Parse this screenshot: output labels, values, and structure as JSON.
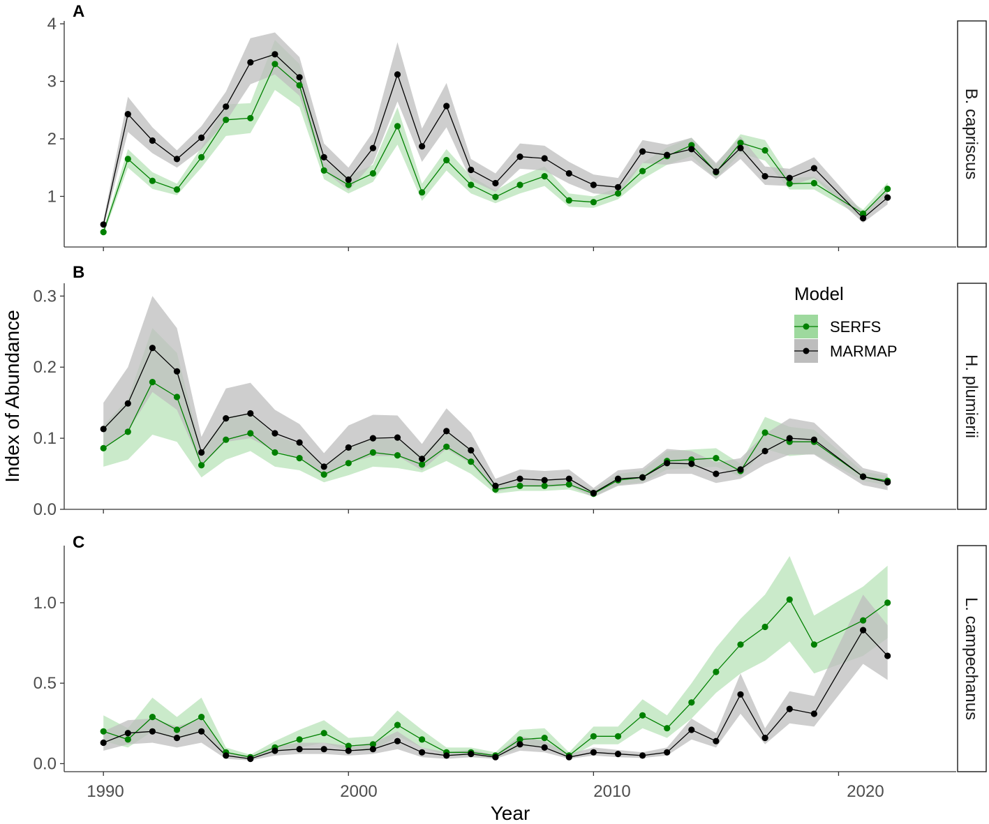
{
  "chart_data": {
    "type": "line",
    "xlabel": "Year",
    "ylabel": "Index of Abundance",
    "xlim": [
      1988.4,
      2024.8
    ],
    "x_ticks": [
      1990,
      2000,
      2010,
      2020
    ],
    "x_tick_labels": [
      "1990",
      "2000",
      "2010",
      "2020"
    ],
    "legend": {
      "title": "Model",
      "position": "inside-top-right of panel B",
      "entries": [
        {
          "name": "SERFS",
          "line_color": "#008000",
          "band_color": "#9ed99e"
        },
        {
          "name": "MARMAP",
          "line_color": "#000000",
          "band_color": "#bdbdbd"
        }
      ]
    },
    "panels": [
      {
        "letter": "A",
        "strip": "B. capriscus",
        "ylim": [
          0.12,
          4.05
        ],
        "y_ticks": [
          1,
          2,
          3,
          4
        ],
        "y_tick_labels": [
          "1",
          "2",
          "3",
          "4"
        ],
        "series": [
          {
            "name": "SERFS",
            "x": [
              1990,
              1991,
              1992,
              1993,
              1994,
              1995,
              1996,
              1997,
              1998,
              1999,
              2000,
              2001,
              2002,
              2003,
              2004,
              2005,
              2006,
              2007,
              2008,
              2009,
              2010,
              2011,
              2012,
              2013,
              2014,
              2015,
              2016,
              2017,
              2018,
              2019,
              2021,
              2022
            ],
            "values": [
              0.38,
              1.65,
              1.27,
              1.12,
              1.68,
              2.33,
              2.36,
              3.3,
              2.93,
              1.45,
              1.2,
              1.4,
              2.22,
              1.07,
              1.63,
              1.2,
              0.99,
              1.2,
              1.35,
              0.93,
              0.9,
              1.05,
              1.44,
              1.7,
              1.89,
              1.42,
              1.93,
              1.8,
              1.22,
              1.23,
              0.7,
              1.13
            ],
            "lower": [
              0.33,
              1.5,
              1.13,
              1.02,
              1.5,
              2.05,
              2.1,
              2.85,
              2.55,
              1.3,
              1.05,
              1.25,
              1.9,
              0.92,
              1.45,
              1.05,
              0.88,
              1.05,
              1.18,
              0.82,
              0.8,
              0.95,
              1.3,
              1.55,
              1.7,
              1.3,
              1.75,
              1.62,
              1.12,
              1.12,
              0.63,
              1.02
            ],
            "upper": [
              0.43,
              1.82,
              1.42,
              1.22,
              1.85,
              2.6,
              2.62,
              3.72,
              3.3,
              1.6,
              1.35,
              1.55,
              2.55,
              1.22,
              1.82,
              1.35,
              1.1,
              1.35,
              1.52,
              1.05,
              1.0,
              1.15,
              1.58,
              1.85,
              2.02,
              1.55,
              2.08,
              1.98,
              1.32,
              1.34,
              0.77,
              1.24
            ]
          },
          {
            "name": "MARMAP",
            "x": [
              1990,
              1991,
              1992,
              1993,
              1994,
              1995,
              1996,
              1997,
              1998,
              1999,
              2000,
              2001,
              2002,
              2003,
              2004,
              2005,
              2006,
              2007,
              2008,
              2009,
              2010,
              2011,
              2012,
              2013,
              2014,
              2015,
              2016,
              2017,
              2018,
              2019,
              2021,
              2022
            ],
            "values": [
              0.51,
              2.43,
              1.97,
              1.65,
              2.02,
              2.56,
              3.33,
              3.47,
              3.07,
              1.68,
              1.29,
              1.84,
              3.12,
              1.87,
              2.57,
              1.46,
              1.23,
              1.69,
              1.66,
              1.4,
              1.2,
              1.16,
              1.78,
              1.72,
              1.82,
              1.43,
              1.84,
              1.35,
              1.32,
              1.49,
              0.62,
              0.98
            ],
            "lower": [
              0.44,
              2.12,
              1.75,
              1.5,
              1.82,
              2.3,
              2.95,
              3.12,
              2.75,
              1.45,
              1.1,
              1.58,
              2.65,
              1.6,
              2.2,
              1.28,
              1.08,
              1.48,
              1.45,
              1.22,
              1.05,
              1.02,
              1.58,
              1.55,
              1.62,
              1.3,
              1.65,
              1.2,
              1.18,
              1.32,
              0.54,
              0.86
            ],
            "upper": [
              0.59,
              2.73,
              2.2,
              1.8,
              2.22,
              2.82,
              3.75,
              3.85,
              3.42,
              1.92,
              1.5,
              2.12,
              3.68,
              2.18,
              2.97,
              1.65,
              1.4,
              1.92,
              1.88,
              1.6,
              1.38,
              1.32,
              1.98,
              1.9,
              2.02,
              1.58,
              2.04,
              1.52,
              1.48,
              1.68,
              0.72,
              1.1
            ]
          }
        ]
      },
      {
        "letter": "B",
        "strip": "H. plumierii",
        "ylim": [
          0.0,
          0.318
        ],
        "y_ticks": [
          0.0,
          0.1,
          0.2,
          0.3
        ],
        "y_tick_labels": [
          "0.0",
          "0.1",
          "0.2",
          "0.3"
        ],
        "series": [
          {
            "name": "SERFS",
            "x": [
              1990,
              1991,
              1992,
              1993,
              1994,
              1995,
              1996,
              1997,
              1998,
              1999,
              2000,
              2001,
              2002,
              2003,
              2004,
              2005,
              2006,
              2007,
              2008,
              2009,
              2010,
              2011,
              2012,
              2013,
              2014,
              2015,
              2016,
              2017,
              2018,
              2019,
              2021,
              2022
            ],
            "values": [
              0.086,
              0.109,
              0.179,
              0.158,
              0.062,
              0.098,
              0.107,
              0.08,
              0.072,
              0.049,
              0.065,
              0.08,
              0.076,
              0.063,
              0.088,
              0.067,
              0.028,
              0.033,
              0.033,
              0.035,
              0.022,
              0.041,
              0.045,
              0.068,
              0.07,
              0.072,
              0.054,
              0.108,
              0.095,
              0.095,
              0.046,
              0.04
            ],
            "lower": [
              0.06,
              0.07,
              0.105,
              0.095,
              0.045,
              0.07,
              0.082,
              0.06,
              0.055,
              0.038,
              0.048,
              0.06,
              0.058,
              0.052,
              0.068,
              0.05,
              0.022,
              0.026,
              0.026,
              0.028,
              0.018,
              0.034,
              0.038,
              0.056,
              0.058,
              0.06,
              0.046,
              0.085,
              0.075,
              0.078,
              0.04,
              0.034
            ],
            "upper": [
              0.118,
              0.155,
              0.255,
              0.22,
              0.082,
              0.13,
              0.135,
              0.104,
              0.092,
              0.062,
              0.086,
              0.1,
              0.098,
              0.076,
              0.11,
              0.085,
              0.035,
              0.04,
              0.041,
              0.043,
              0.027,
              0.05,
              0.054,
              0.082,
              0.084,
              0.086,
              0.064,
              0.13,
              0.116,
              0.112,
              0.053,
              0.047
            ]
          },
          {
            "name": "MARMAP",
            "x": [
              1990,
              1991,
              1992,
              1993,
              1994,
              1995,
              1996,
              1997,
              1998,
              1999,
              2000,
              2001,
              2002,
              2003,
              2004,
              2005,
              2006,
              2007,
              2008,
              2009,
              2010,
              2011,
              2012,
              2013,
              2014,
              2015,
              2016,
              2017,
              2018,
              2019,
              2021,
              2022
            ],
            "values": [
              0.113,
              0.149,
              0.227,
              0.194,
              0.08,
              0.128,
              0.135,
              0.107,
              0.094,
              0.06,
              0.087,
              0.1,
              0.101,
              0.071,
              0.11,
              0.083,
              0.033,
              0.043,
              0.041,
              0.043,
              0.023,
              0.043,
              0.045,
              0.065,
              0.064,
              0.05,
              0.056,
              0.082,
              0.1,
              0.098,
              0.046,
              0.038
            ],
            "lower": [
              0.085,
              0.11,
              0.165,
              0.14,
              0.062,
              0.095,
              0.1,
              0.082,
              0.072,
              0.046,
              0.065,
              0.075,
              0.075,
              0.055,
              0.085,
              0.064,
              0.025,
              0.032,
              0.031,
              0.033,
              0.017,
              0.033,
              0.036,
              0.05,
              0.05,
              0.037,
              0.043,
              0.063,
              0.077,
              0.077,
              0.034,
              0.027
            ],
            "upper": [
              0.15,
              0.2,
              0.3,
              0.255,
              0.102,
              0.17,
              0.178,
              0.14,
              0.12,
              0.079,
              0.118,
              0.133,
              0.132,
              0.092,
              0.142,
              0.108,
              0.043,
              0.056,
              0.054,
              0.056,
              0.03,
              0.055,
              0.058,
              0.085,
              0.082,
              0.066,
              0.072,
              0.106,
              0.128,
              0.122,
              0.058,
              0.05
            ]
          }
        ]
      },
      {
        "letter": "C",
        "strip": "L. campechanus",
        "ylim": [
          -0.05,
          1.355
        ],
        "y_ticks": [
          0.0,
          0.5,
          1.0
        ],
        "y_tick_labels": [
          "0.0",
          "0.5",
          "1.0"
        ],
        "series": [
          {
            "name": "SERFS",
            "x": [
              1990,
              1991,
              1992,
              1993,
              1994,
              1995,
              1996,
              1997,
              1998,
              1999,
              2000,
              2001,
              2002,
              2003,
              2004,
              2005,
              2006,
              2007,
              2008,
              2009,
              2010,
              2011,
              2012,
              2013,
              2014,
              2015,
              2016,
              2017,
              2018,
              2019,
              2021,
              2022
            ],
            "values": [
              0.2,
              0.15,
              0.29,
              0.21,
              0.29,
              0.07,
              0.04,
              0.1,
              0.15,
              0.19,
              0.11,
              0.12,
              0.24,
              0.15,
              0.07,
              0.07,
              0.05,
              0.15,
              0.16,
              0.05,
              0.17,
              0.17,
              0.3,
              0.22,
              0.38,
              0.57,
              0.74,
              0.85,
              1.02,
              0.74,
              0.89,
              1.0
            ],
            "lower": [
              0.14,
              0.1,
              0.2,
              0.15,
              0.2,
              0.05,
              0.03,
              0.07,
              0.1,
              0.13,
              0.08,
              0.08,
              0.17,
              0.1,
              0.05,
              0.05,
              0.035,
              0.1,
              0.11,
              0.035,
              0.12,
              0.12,
              0.22,
              0.16,
              0.28,
              0.44,
              0.56,
              0.64,
              0.76,
              0.56,
              0.67,
              0.78
            ],
            "upper": [
              0.3,
              0.22,
              0.41,
              0.29,
              0.41,
              0.1,
              0.055,
              0.14,
              0.21,
              0.27,
              0.16,
              0.17,
              0.33,
              0.21,
              0.1,
              0.1,
              0.07,
              0.21,
              0.22,
              0.07,
              0.23,
              0.23,
              0.4,
              0.3,
              0.5,
              0.72,
              0.9,
              1.05,
              1.29,
              0.92,
              1.1,
              1.23
            ]
          },
          {
            "name": "MARMAP",
            "x": [
              1990,
              1991,
              1992,
              1993,
              1994,
              1995,
              1996,
              1997,
              1998,
              1999,
              2000,
              2001,
              2002,
              2003,
              2004,
              2005,
              2006,
              2007,
              2008,
              2009,
              2010,
              2011,
              2012,
              2013,
              2014,
              2015,
              2016,
              2017,
              2018,
              2019,
              2021,
              2022
            ],
            "values": [
              0.13,
              0.19,
              0.2,
              0.16,
              0.2,
              0.05,
              0.03,
              0.08,
              0.09,
              0.09,
              0.08,
              0.09,
              0.14,
              0.07,
              0.05,
              0.06,
              0.04,
              0.12,
              0.1,
              0.04,
              0.07,
              0.06,
              0.05,
              0.07,
              0.21,
              0.14,
              0.43,
              0.16,
              0.34,
              0.31,
              0.83,
              0.67
            ],
            "lower": [
              0.08,
              0.12,
              0.13,
              0.1,
              0.13,
              0.03,
              0.02,
              0.05,
              0.06,
              0.06,
              0.05,
              0.06,
              0.09,
              0.04,
              0.03,
              0.04,
              0.03,
              0.08,
              0.07,
              0.03,
              0.05,
              0.04,
              0.035,
              0.05,
              0.15,
              0.1,
              0.31,
              0.12,
              0.25,
              0.23,
              0.62,
              0.52
            ],
            "upper": [
              0.2,
              0.27,
              0.28,
              0.23,
              0.28,
              0.07,
              0.045,
              0.11,
              0.13,
              0.13,
              0.11,
              0.13,
              0.2,
              0.1,
              0.07,
              0.085,
              0.055,
              0.17,
              0.14,
              0.06,
              0.1,
              0.085,
              0.07,
              0.1,
              0.28,
              0.19,
              0.56,
              0.22,
              0.45,
              0.42,
              1.05,
              0.86
            ]
          }
        ]
      }
    ]
  }
}
